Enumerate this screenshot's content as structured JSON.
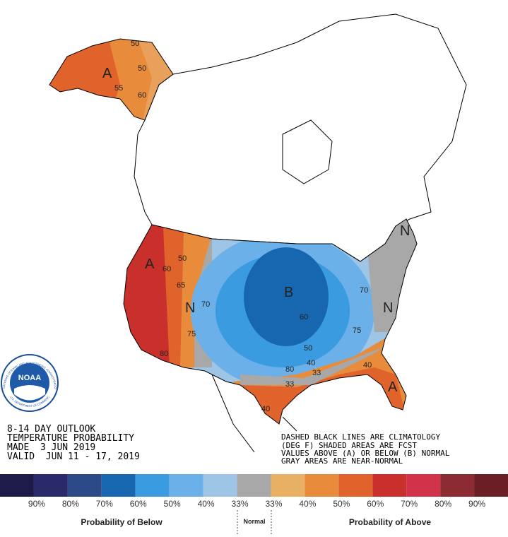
{
  "header": {
    "lines": [
      "8-14 DAY OUTLOOK",
      "TEMPERATURE PROBABILITY",
      "MADE  3 JUN 2019",
      "VALID  JUN 11 - 17, 2019"
    ]
  },
  "notes": {
    "lines": [
      "DASHED BLACK LINES ARE CLIMATOLOGY",
      "(DEG F) SHADED AREAS ARE FCST",
      "VALUES ABOVE (A) OR BELOW (B) NORMAL",
      "GRAY AREAS ARE NEAR-NORMAL"
    ]
  },
  "logo": {
    "name": "NOAA",
    "arc_top": "NATIONAL OCEANIC AND ATMOSPHERIC ADMINISTRATION",
    "arc_bottom": "U.S. DEPARTMENT OF COMMERCE"
  },
  "map": {
    "labels": [
      "A",
      "50",
      "50",
      "55",
      "60",
      "A",
      "60",
      "50",
      "65",
      "70",
      "N",
      "75",
      "80",
      "B",
      "60",
      "50",
      "40",
      "33",
      "80",
      "33",
      "40",
      "70",
      "75",
      "40",
      "A",
      "N",
      "N"
    ]
  },
  "legend": {
    "colors": [
      "#1e1a4a",
      "#2a2a6a",
      "#2d4a88",
      "#1766b0",
      "#3a9be0",
      "#6bb0e8",
      "#9ec4e6",
      "#a8a8a8",
      "#e8b062",
      "#e88c3b",
      "#e0632c",
      "#c9302b",
      "#d1334a",
      "#8c2b31",
      "#6a1e25"
    ],
    "labels": [
      "90%",
      "80%",
      "70%",
      "60%",
      "50%",
      "40%",
      "33%",
      "33%",
      "40%",
      "50%",
      "60%",
      "70%",
      "80%",
      "90%"
    ],
    "groups": [
      "Probability of Below",
      "Normal",
      "Probability of Above"
    ]
  }
}
